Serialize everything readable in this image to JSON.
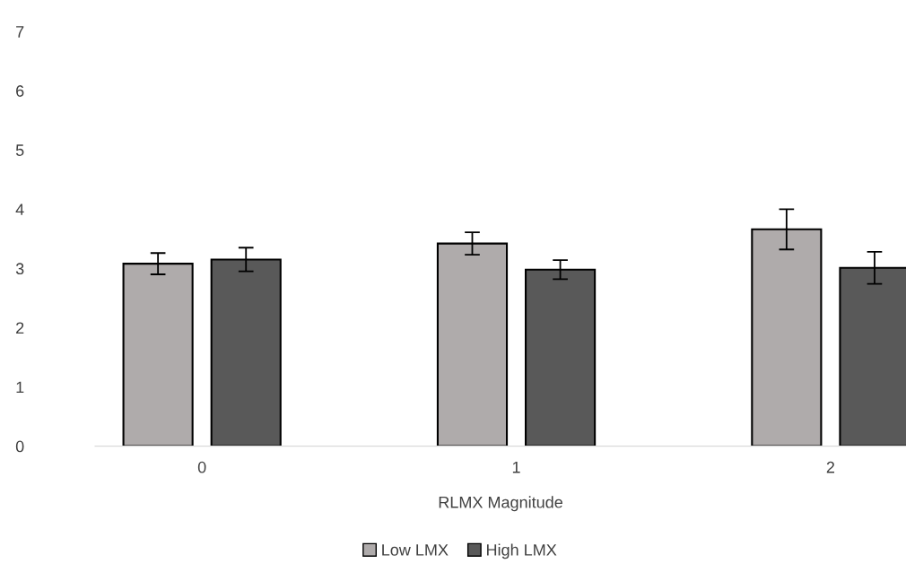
{
  "chart_data": {
    "type": "bar",
    "xlabel": "RLMX Magnitude",
    "categories": [
      "0",
      "1",
      "2"
    ],
    "series": [
      {
        "name": "Low LMX",
        "color": "#afabab",
        "values": [
          3.08,
          3.42,
          3.66
        ],
        "errors": [
          0.18,
          0.19,
          0.34
        ]
      },
      {
        "name": "High LMX",
        "color": "#595959",
        "values": [
          3.15,
          2.98,
          3.01
        ],
        "errors": [
          0.2,
          0.16,
          0.27
        ]
      }
    ],
    "ylim": [
      0,
      7
    ],
    "yticks": [
      0,
      1,
      2,
      3,
      4,
      5,
      6,
      7
    ],
    "grid": false,
    "legend": "bottom"
  }
}
